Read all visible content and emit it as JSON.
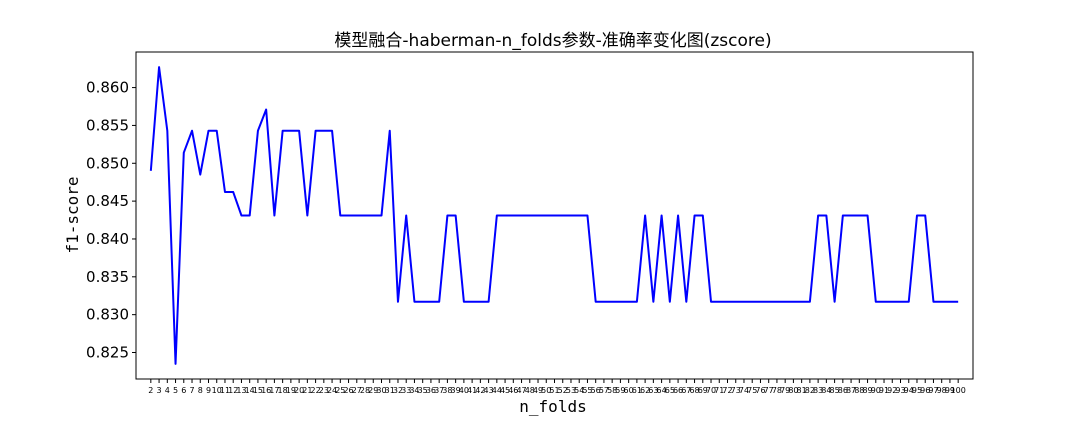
{
  "chart_data": {
    "type": "line",
    "title": "模型融合-haberman-n_folds参数-准确率变化图(zscore)",
    "xlabel": "n_folds",
    "ylabel": "f1-score",
    "x": [
      2,
      3,
      4,
      5,
      6,
      7,
      8,
      9,
      10,
      11,
      12,
      13,
      14,
      15,
      16,
      17,
      18,
      19,
      20,
      21,
      22,
      23,
      24,
      25,
      26,
      27,
      28,
      29,
      30,
      31,
      32,
      33,
      34,
      35,
      36,
      37,
      38,
      39,
      40,
      41,
      42,
      43,
      44,
      45,
      46,
      47,
      48,
      49,
      50,
      51,
      52,
      53,
      54,
      55,
      56,
      57,
      58,
      59,
      60,
      61,
      62,
      63,
      64,
      65,
      66,
      67,
      68,
      69,
      70,
      71,
      72,
      73,
      74,
      75,
      76,
      77,
      78,
      79,
      80,
      81,
      82,
      83,
      84,
      85,
      86,
      87,
      88,
      89,
      90,
      91,
      92,
      93,
      94,
      95,
      96,
      97,
      98,
      99,
      100
    ],
    "series": [
      {
        "color": "#0000ff",
        "values": [
          0.849,
          0.8627,
          0.8543,
          0.8235,
          0.8514,
          0.8543,
          0.8485,
          0.8543,
          0.8543,
          0.8462,
          0.8462,
          0.8431,
          0.8431,
          0.8543,
          0.8571,
          0.8431,
          0.8543,
          0.8543,
          0.8543,
          0.8431,
          0.8543,
          0.8543,
          0.8543,
          0.8431,
          0.8431,
          0.8431,
          0.8431,
          0.8431,
          0.8431,
          0.8543,
          0.8317,
          0.8431,
          0.8317,
          0.8317,
          0.8317,
          0.8317,
          0.8431,
          0.8431,
          0.8317,
          0.8317,
          0.8317,
          0.8317,
          0.8431,
          0.8431,
          0.8431,
          0.8431,
          0.8431,
          0.8431,
          0.8431,
          0.8431,
          0.8431,
          0.8431,
          0.8431,
          0.8431,
          0.8317,
          0.8317,
          0.8317,
          0.8317,
          0.8317,
          0.8317,
          0.8431,
          0.8317,
          0.8431,
          0.8317,
          0.8431,
          0.8317,
          0.8431,
          0.8431,
          0.8317,
          0.8317,
          0.8317,
          0.8317,
          0.8317,
          0.8317,
          0.8317,
          0.8317,
          0.8317,
          0.8317,
          0.8317,
          0.8317,
          0.8317,
          0.8431,
          0.8431,
          0.8317,
          0.8431,
          0.8431,
          0.8431,
          0.8431,
          0.8317,
          0.8317,
          0.8317,
          0.8317,
          0.8317,
          0.8431,
          0.8431,
          0.8317,
          0.8317,
          0.8317,
          0.8317
        ]
      }
    ],
    "yticks": [
      0.825,
      0.83,
      0.835,
      0.84,
      0.845,
      0.85,
      0.855,
      0.86
    ],
    "ytick_labels": [
      "0.825",
      "0.830",
      "0.835",
      "0.840",
      "0.845",
      "0.850",
      "0.855",
      "0.860"
    ],
    "ylim": [
      0.8215,
      0.8647
    ],
    "xlim": [
      0.2,
      101.8
    ],
    "grid": false
  }
}
